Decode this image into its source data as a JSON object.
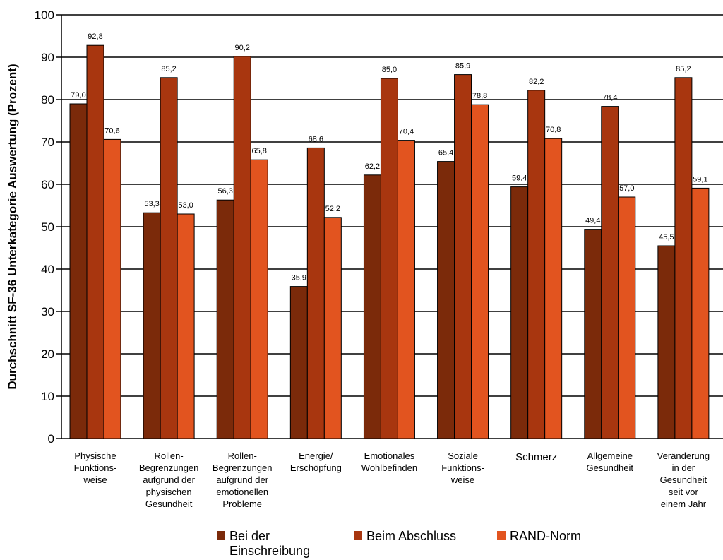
{
  "chart_data": {
    "type": "bar",
    "ylabel": "Durchschnitt SF-36 Unterkategorie Auswertung (Prozent)",
    "xlabel": "",
    "ylim": [
      0,
      100
    ],
    "yticks": [
      "0",
      "10",
      "20",
      "30",
      "40",
      "50",
      "60",
      "70",
      "80",
      "90",
      "100"
    ],
    "grid": true,
    "legend_position": "bottom",
    "categories": [
      [
        "Physische",
        "Funktions-",
        "weise"
      ],
      [
        "Rollen-",
        "Begrenzungen",
        "aufgrund der",
        "physischen",
        "Gesundheit"
      ],
      [
        "Rollen-",
        "Begrenzungen",
        "aufgrund der",
        "emotionellen",
        "Probleme"
      ],
      [
        "Energie/",
        "Erschöpfung"
      ],
      [
        "Emotionales",
        "Wohlbefinden"
      ],
      [
        "Soziale",
        "Funktions-",
        "weise"
      ],
      [
        "Schmerz"
      ],
      [
        "Allgemeine",
        "Gesundheit"
      ],
      [
        "Veränderung",
        "in der",
        "Gesundheit",
        "seit vor",
        "einem Jahr"
      ]
    ],
    "series": [
      {
        "name": [
          "Bei der",
          "Einschreibung"
        ],
        "color": "#7b2a0a",
        "values": [
          79.0,
          53.3,
          56.3,
          35.9,
          62.2,
          65.4,
          59.4,
          49.4,
          45.5
        ],
        "labels": [
          "79,0",
          "53,3",
          "56,3",
          "35,9",
          "62,2",
          "65,4",
          "59,4",
          "49,4",
          "45,5"
        ]
      },
      {
        "name": [
          "Beim Abschluss"
        ],
        "color": "#a8360f",
        "values": [
          92.8,
          85.2,
          90.2,
          68.6,
          85.0,
          85.9,
          82.2,
          78.4,
          85.2
        ],
        "labels": [
          "92,8",
          "85,2",
          "90,2",
          "68,6",
          "85,0",
          "85,9",
          "82,2",
          "78,4",
          "85,2"
        ]
      },
      {
        "name": [
          "RAND-Norm"
        ],
        "color": "#e2541f",
        "values": [
          70.6,
          53.0,
          65.8,
          52.2,
          70.4,
          78.8,
          70.8,
          57.0,
          59.1
        ],
        "labels": [
          "70,6",
          "53,0",
          "65,8",
          "52,2",
          "70,4",
          "78,8",
          "70,8",
          "57,0",
          "59,1"
        ]
      }
    ]
  }
}
